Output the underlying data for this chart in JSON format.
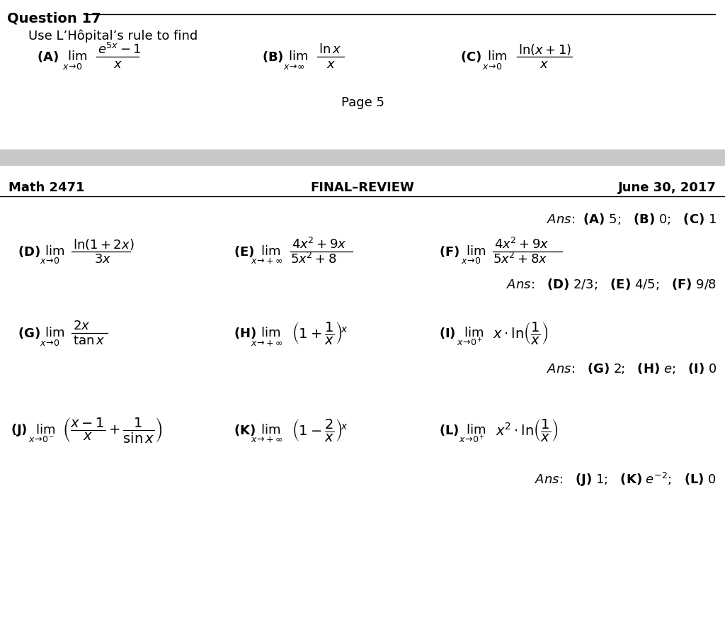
{
  "bg": "#ffffff",
  "gray_bar": "#c8c8c8",
  "top": {
    "q_label": "Question 17",
    "instruction": "Use L’Hôpital’s rule to find",
    "page": "Page 5"
  },
  "header": {
    "left": "Math 2471",
    "center": "FINAL–REVIEW",
    "right": "June 30, 2017"
  },
  "ans1": "Ans:  (A) 5;   (B) 0;   (C) 1",
  "ans2": "Ans:   (D) 2/3;   (E) 4/5;   (F) 9/8",
  "ans3": "Ans:   (G) 2;   (H) e;   (I) 0",
  "ans4": "Ans:   (J) 1;   (K) e^{-2};   (L) 0"
}
